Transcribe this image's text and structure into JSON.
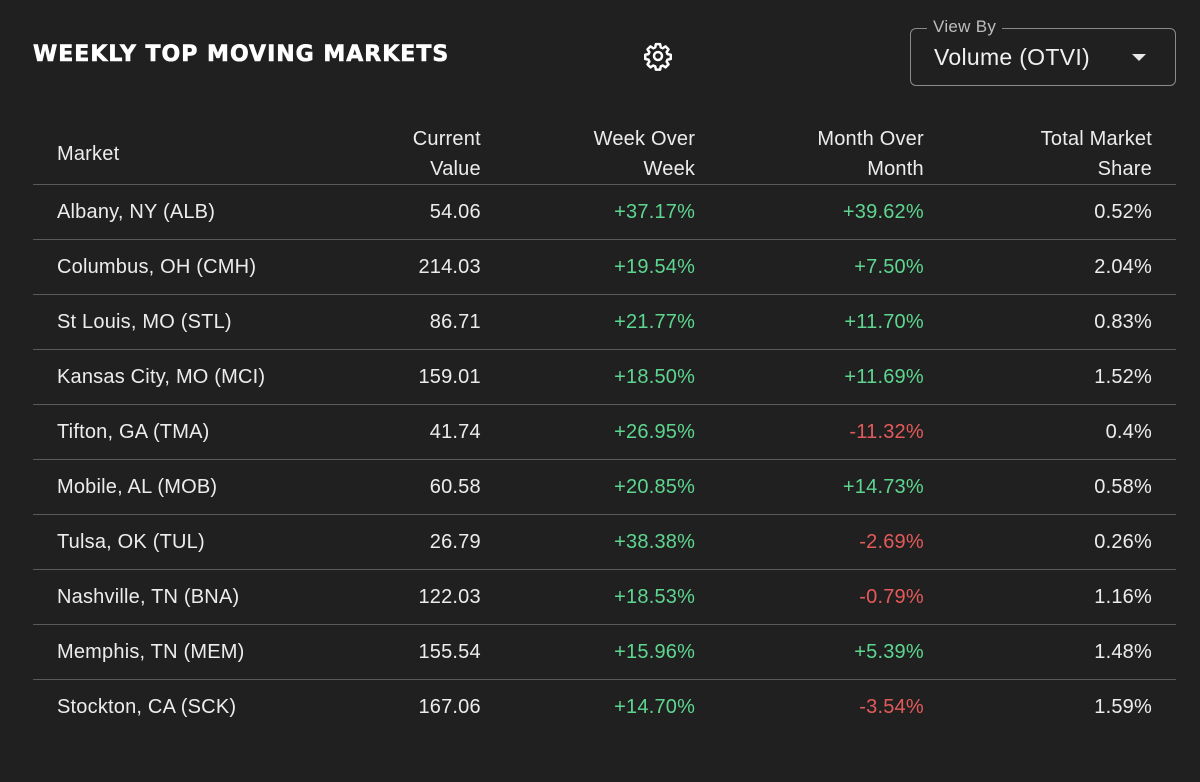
{
  "header": {
    "title": "WEEKLY TOP MOVING MARKETS",
    "settings_icon": "gear-icon"
  },
  "view_by": {
    "label": "View By",
    "selected": "Volume (OTVI)",
    "dropdown_icon": "caret-down-icon"
  },
  "colors": {
    "background": "#202020",
    "positive": "#5ed68f",
    "negative": "#e45a5a",
    "divider": "#5a5a5a"
  },
  "table": {
    "columns": {
      "market": "Market",
      "current_value_line1": "Current",
      "current_value_line2": "Value",
      "wow_line1": "Week Over",
      "wow_line2": "Week",
      "mom_line1": "Month Over",
      "mom_line2": "Month",
      "share_line1": "Total Market",
      "share_line2": "Share"
    },
    "rows": [
      {
        "market": "Albany, NY (ALB)",
        "value": "54.06",
        "wow": "+37.17%",
        "mom": "+39.62%",
        "share": "0.52%"
      },
      {
        "market": "Columbus, OH (CMH)",
        "value": "214.03",
        "wow": "+19.54%",
        "mom": "+7.50%",
        "share": "2.04%"
      },
      {
        "market": "St Louis, MO (STL)",
        "value": "86.71",
        "wow": "+21.77%",
        "mom": "+11.70%",
        "share": "0.83%"
      },
      {
        "market": "Kansas City, MO (MCI)",
        "value": "159.01",
        "wow": "+18.50%",
        "mom": "+11.69%",
        "share": "1.52%"
      },
      {
        "market": "Tifton, GA (TMA)",
        "value": "41.74",
        "wow": "+26.95%",
        "mom": "-11.32%",
        "share": "0.4%"
      },
      {
        "market": "Mobile, AL (MOB)",
        "value": "60.58",
        "wow": "+20.85%",
        "mom": "+14.73%",
        "share": "0.58%"
      },
      {
        "market": "Tulsa, OK (TUL)",
        "value": "26.79",
        "wow": "+38.38%",
        "mom": "-2.69%",
        "share": "0.26%"
      },
      {
        "market": "Nashville, TN (BNA)",
        "value": "122.03",
        "wow": "+18.53%",
        "mom": "-0.79%",
        "share": "1.16%"
      },
      {
        "market": "Memphis, TN (MEM)",
        "value": "155.54",
        "wow": "+15.96%",
        "mom": "+5.39%",
        "share": "1.48%"
      },
      {
        "market": "Stockton, CA (SCK)",
        "value": "167.06",
        "wow": "+14.70%",
        "mom": "-3.54%",
        "share": "1.59%"
      }
    ]
  }
}
